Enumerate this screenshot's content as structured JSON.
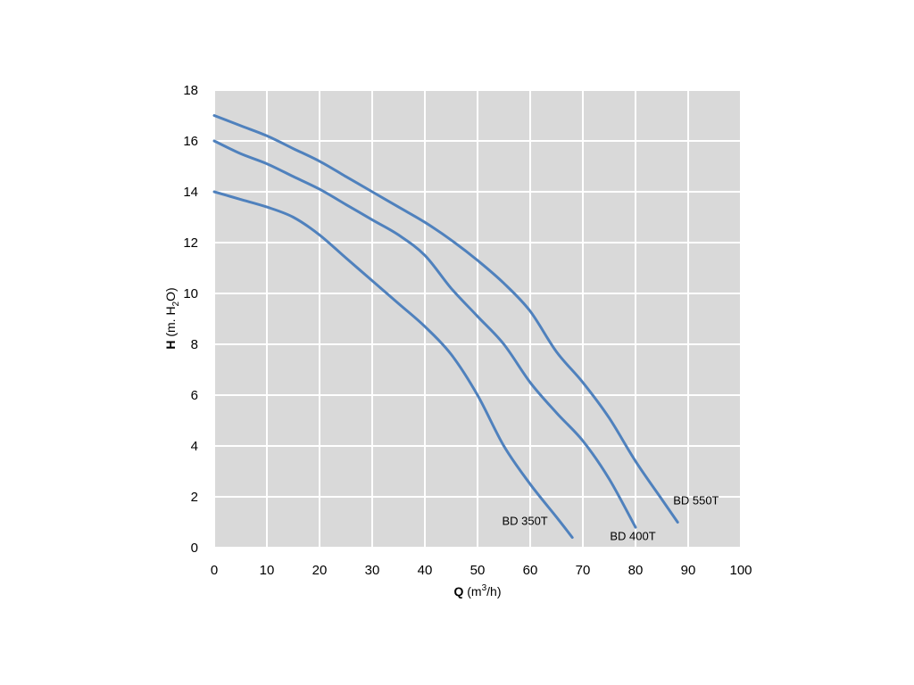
{
  "chart_data": {
    "type": "line",
    "xlabel": {
      "symbol": "Q",
      "unit_pre": " (m",
      "unit_sup": "3",
      "unit_post": "/h)"
    },
    "ylabel": {
      "symbol": "H",
      "unit_pre": " (m. H",
      "unit_sub": "2",
      "unit_post": "O)"
    },
    "xlim": [
      0,
      100
    ],
    "ylim": [
      0,
      18
    ],
    "x_ticks": [
      "0",
      "10",
      "20",
      "30",
      "40",
      "50",
      "60",
      "70",
      "80",
      "90",
      "100"
    ],
    "y_ticks": [
      "0",
      "2",
      "4",
      "6",
      "8",
      "10",
      "12",
      "14",
      "16",
      "18"
    ],
    "grid": true,
    "plot_background": "#d9d9d9",
    "grid_color": "#ffffff",
    "line_color": "#4f81bd",
    "series": [
      {
        "name": "BD 350T",
        "points": [
          [
            0,
            14
          ],
          [
            5,
            13.7
          ],
          [
            10,
            13.4
          ],
          [
            15,
            13
          ],
          [
            20,
            12.3
          ],
          [
            25,
            11.4
          ],
          [
            30,
            10.5
          ],
          [
            35,
            9.6
          ],
          [
            40,
            8.7
          ],
          [
            45,
            7.6
          ],
          [
            50,
            6
          ],
          [
            55,
            4
          ],
          [
            60,
            2.5
          ],
          [
            65,
            1.2
          ],
          [
            68,
            0.4
          ]
        ]
      },
      {
        "name": "BD 400T",
        "points": [
          [
            0,
            16
          ],
          [
            5,
            15.5
          ],
          [
            10,
            15.1
          ],
          [
            15,
            14.6
          ],
          [
            20,
            14.1
          ],
          [
            25,
            13.5
          ],
          [
            30,
            12.9
          ],
          [
            35,
            12.3
          ],
          [
            40,
            11.5
          ],
          [
            45,
            10.2
          ],
          [
            50,
            9.1
          ],
          [
            55,
            8
          ],
          [
            60,
            6.5
          ],
          [
            65,
            5.3
          ],
          [
            70,
            4.2
          ],
          [
            75,
            2.7
          ],
          [
            80,
            0.8
          ]
        ]
      },
      {
        "name": "BD 550T",
        "points": [
          [
            0,
            17
          ],
          [
            5,
            16.6
          ],
          [
            10,
            16.2
          ],
          [
            15,
            15.7
          ],
          [
            20,
            15.2
          ],
          [
            25,
            14.6
          ],
          [
            30,
            14
          ],
          [
            35,
            13.4
          ],
          [
            40,
            12.8
          ],
          [
            45,
            12.1
          ],
          [
            50,
            11.3
          ],
          [
            55,
            10.4
          ],
          [
            60,
            9.3
          ],
          [
            65,
            7.7
          ],
          [
            70,
            6.5
          ],
          [
            75,
            5.1
          ],
          [
            80,
            3.4
          ],
          [
            85,
            1.9
          ],
          [
            88,
            1
          ]
        ]
      }
    ],
    "series_labels": [
      {
        "name": "BD 350T",
        "x": 59,
        "y": 0.9
      },
      {
        "name": "BD 400T",
        "x": 79.5,
        "y": 0.3
      },
      {
        "name": "BD 550T",
        "x": 91.5,
        "y": 1.7
      }
    ]
  }
}
